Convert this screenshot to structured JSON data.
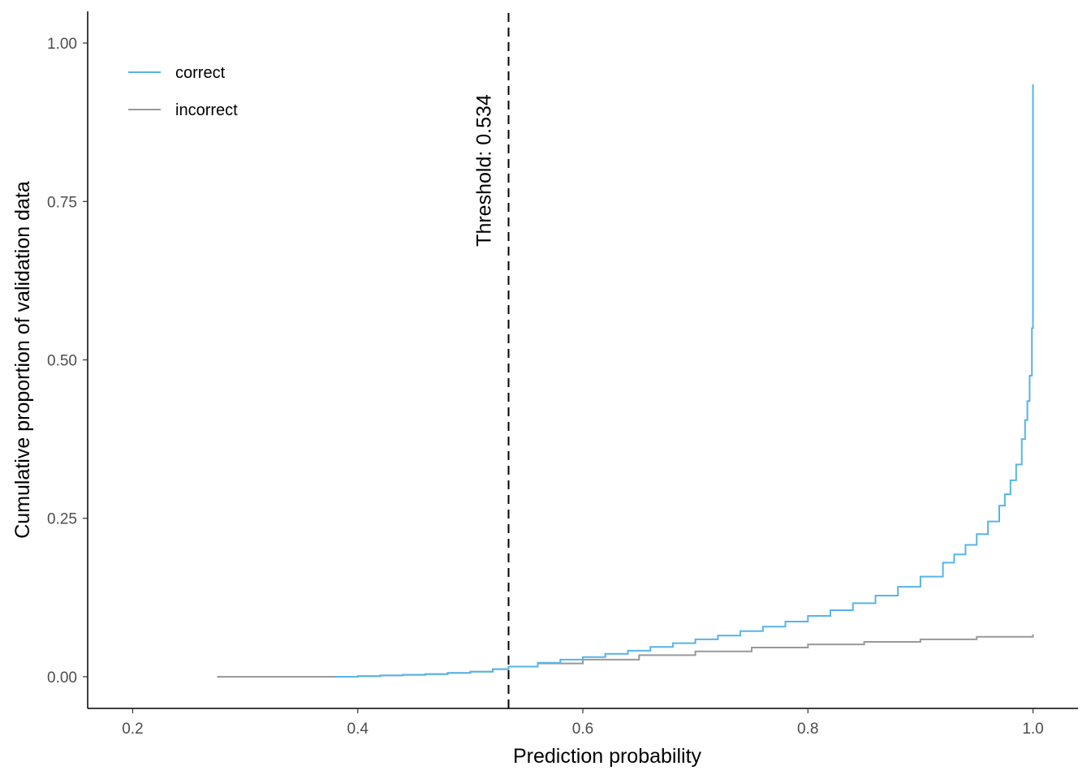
{
  "chart_data": {
    "type": "line",
    "xlabel": "Prediction probability",
    "ylabel": "Cumulative proportion of validation data",
    "xlim": [
      0.16,
      1.04
    ],
    "ylim": [
      -0.05,
      1.05
    ],
    "x_ticks": [
      0.2,
      0.4,
      0.6,
      0.8,
      1.0
    ],
    "x_tick_labels": [
      "0.2",
      "0.4",
      "0.6",
      "0.8",
      "1.0"
    ],
    "y_ticks": [
      0.0,
      0.25,
      0.5,
      0.75,
      1.0
    ],
    "y_tick_labels": [
      "0.00",
      "0.25",
      "0.50",
      "0.75",
      "1.00"
    ],
    "grid": false,
    "legend_position": "top-left",
    "threshold": {
      "value": 0.534,
      "label": "Threshold: 0.534",
      "style": "dashed",
      "color": "#000000"
    },
    "series": [
      {
        "name": "correct",
        "color": "#56B4E9",
        "x": [
          0.38,
          0.4,
          0.42,
          0.44,
          0.46,
          0.48,
          0.5,
          0.52,
          0.534,
          0.56,
          0.58,
          0.6,
          0.62,
          0.64,
          0.66,
          0.68,
          0.7,
          0.72,
          0.74,
          0.76,
          0.78,
          0.8,
          0.82,
          0.84,
          0.86,
          0.88,
          0.9,
          0.92,
          0.93,
          0.94,
          0.95,
          0.96,
          0.97,
          0.975,
          0.98,
          0.985,
          0.99,
          0.993,
          0.995,
          0.997,
          0.999,
          1.0,
          1.0,
          1.0
        ],
        "y": [
          0.0,
          0.001,
          0.002,
          0.003,
          0.004,
          0.006,
          0.008,
          0.012,
          0.016,
          0.022,
          0.027,
          0.031,
          0.036,
          0.041,
          0.047,
          0.053,
          0.059,
          0.065,
          0.072,
          0.079,
          0.087,
          0.096,
          0.105,
          0.116,
          0.128,
          0.142,
          0.158,
          0.18,
          0.193,
          0.208,
          0.225,
          0.245,
          0.27,
          0.288,
          0.31,
          0.335,
          0.375,
          0.405,
          0.435,
          0.475,
          0.55,
          0.55,
          0.75,
          0.935
        ]
      },
      {
        "name": "incorrect",
        "color": "#999999",
        "x": [
          0.275,
          0.3,
          0.35,
          0.4,
          0.42,
          0.44,
          0.46,
          0.48,
          0.5,
          0.52,
          0.534,
          0.56,
          0.6,
          0.65,
          0.7,
          0.75,
          0.8,
          0.85,
          0.9,
          0.95,
          1.0
        ],
        "y": [
          0.0,
          0.0,
          0.0,
          0.001,
          0.002,
          0.003,
          0.004,
          0.006,
          0.008,
          0.012,
          0.016,
          0.021,
          0.027,
          0.034,
          0.04,
          0.046,
          0.051,
          0.055,
          0.059,
          0.063,
          0.067
        ]
      }
    ]
  }
}
